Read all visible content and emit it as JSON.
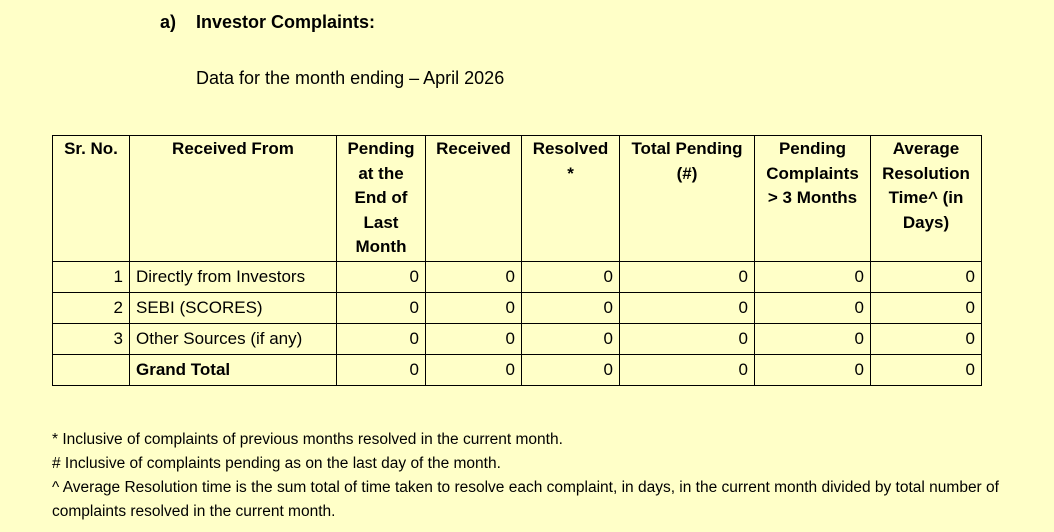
{
  "heading": {
    "marker": "a)",
    "title": "Investor Complaints:"
  },
  "subtitle": "Data for the month ending – April 2026",
  "table": {
    "headers": [
      "Sr. No.",
      "Received From",
      "Pending at the End of Last Month",
      "Received",
      "Resolved *",
      "Total Pending (#)",
      "Pending Complaints > 3 Months",
      "Average Resolution Time^ (in Days)"
    ],
    "rows": [
      {
        "sr": "1",
        "source": "Directly from Investors",
        "pending_last": "0",
        "received": "0",
        "resolved": "0",
        "total_pending": "0",
        "pending_3m": "0",
        "avg_time": "0"
      },
      {
        "sr": "2",
        "source": "SEBI (SCORES)",
        "pending_last": "0",
        "received": "0",
        "resolved": "0",
        "total_pending": "0",
        "pending_3m": "0",
        "avg_time": "0"
      },
      {
        "sr": "3",
        "source": "Other Sources (if any)",
        "pending_last": "0",
        "received": "0",
        "resolved": "0",
        "total_pending": "0",
        "pending_3m": "0",
        "avg_time": "0"
      }
    ],
    "total": {
      "sr": "",
      "source": "Grand Total",
      "pending_last": "0",
      "received": "0",
      "resolved": "0",
      "total_pending": "0",
      "pending_3m": "0",
      "avg_time": "0"
    }
  },
  "notes": [
    "* Inclusive of complaints of previous months resolved in the current month.",
    "# Inclusive of complaints pending as on the last day of the month.",
    "^ Average Resolution time is the sum total of time taken to resolve each complaint, in days, in the current month divided by total number of complaints resolved in the current month."
  ]
}
